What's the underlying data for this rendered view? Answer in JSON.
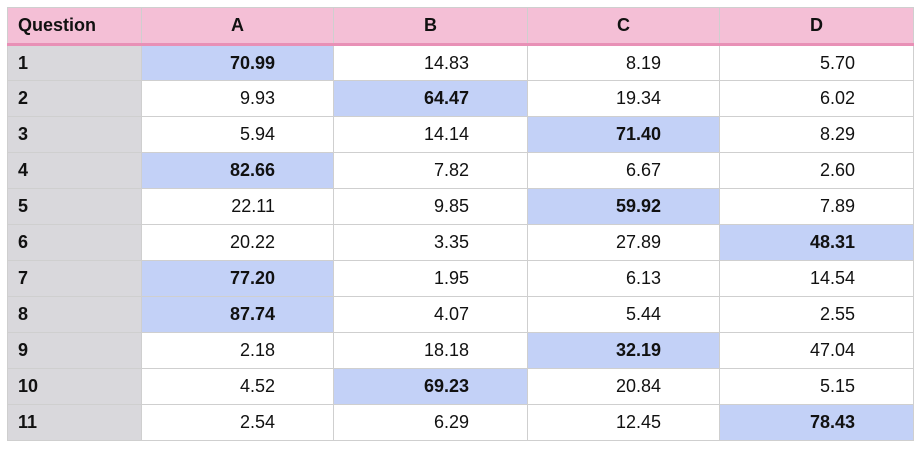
{
  "table": {
    "headers": [
      "Question",
      "A",
      "B",
      "C",
      "D"
    ],
    "highlight_color": "#c3d1f7",
    "header_color": "#f4bfd6",
    "rows": [
      {
        "question": "1",
        "values": [
          "70.99",
          "14.83",
          "8.19",
          "5.70"
        ],
        "highlight": 0
      },
      {
        "question": "2",
        "values": [
          "9.93",
          "64.47",
          "19.34",
          "6.02"
        ],
        "highlight": 1
      },
      {
        "question": "3",
        "values": [
          "5.94",
          "14.14",
          "71.40",
          "8.29"
        ],
        "highlight": 2
      },
      {
        "question": "4",
        "values": [
          "82.66",
          "7.82",
          "6.67",
          "2.60"
        ],
        "highlight": 0
      },
      {
        "question": "5",
        "values": [
          "22.11",
          "9.85",
          "59.92",
          "7.89"
        ],
        "highlight": 2
      },
      {
        "question": "6",
        "values": [
          "20.22",
          "3.35",
          "27.89",
          "48.31"
        ],
        "highlight": 3
      },
      {
        "question": "7",
        "values": [
          "77.20",
          "1.95",
          "6.13",
          "14.54"
        ],
        "highlight": 0
      },
      {
        "question": "8",
        "values": [
          "87.74",
          "4.07",
          "5.44",
          "2.55"
        ],
        "highlight": 0
      },
      {
        "question": "9",
        "values": [
          "2.18",
          "18.18",
          "32.19",
          "47.04"
        ],
        "highlight": 2
      },
      {
        "question": "10",
        "values": [
          "4.52",
          "69.23",
          "20.84",
          "5.15"
        ],
        "highlight": 1
      },
      {
        "question": "11",
        "values": [
          "2.54",
          "6.29",
          "12.45",
          "78.43"
        ],
        "highlight": 3
      }
    ]
  }
}
